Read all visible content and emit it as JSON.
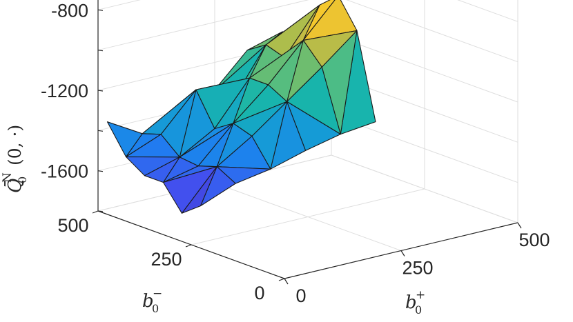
{
  "chart_data": {
    "type": "surface3d",
    "title": "",
    "xlabel": {
      "base": "b",
      "sub": "0",
      "sup": "+"
    },
    "ylabel": {
      "base": "b",
      "sub": "0",
      "sup": "−"
    },
    "zlabel": {
      "base": "Q̄",
      "sub": "0",
      "sup": "N",
      "args": "(0, ·)"
    },
    "x_ticks": [
      "0",
      "250",
      "500"
    ],
    "y_ticks": [
      "0",
      "250",
      "500"
    ],
    "z_ticks": [
      "-800",
      "-1200",
      "-1600"
    ],
    "xlim": [
      0,
      500
    ],
    "ylim": [
      0,
      500
    ],
    "zlim": [
      -1800,
      -600
    ],
    "grid": true,
    "colormap": "parula",
    "x": [
      0,
      75,
      150,
      225,
      300,
      375
    ],
    "y": [
      225,
      275,
      325,
      375,
      425,
      475
    ],
    "z": [
      [
        -1590,
        -1520,
        -1490,
        -1440,
        -1400,
        -1380
      ],
      [
        -1660,
        -1470,
        -1360,
        -1230,
        -1100,
        -960
      ],
      [
        -1540,
        -1500,
        -1330,
        -1180,
        -1000,
        -820
      ],
      [
        -1540,
        -1490,
        -1390,
        -1180,
        -1120,
        -900
      ],
      [
        -1480,
        -1410,
        -1230,
        -1340,
        -1090,
        -1070
      ],
      [
        -1340,
        -1440,
        -1420,
        -1320,
        -1150,
        -1100
      ]
    ]
  }
}
